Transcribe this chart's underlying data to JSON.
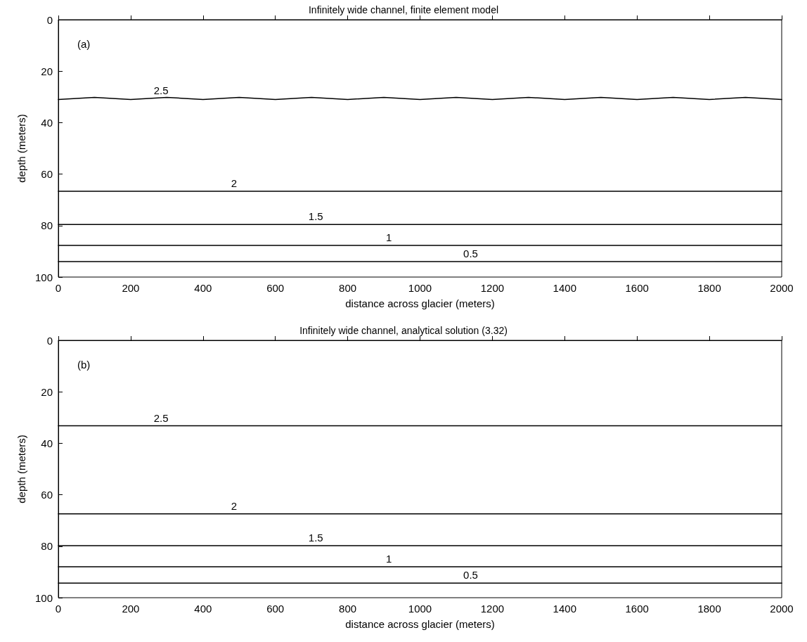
{
  "chart_data": [
    {
      "type": "line",
      "title": "Infinitely wide channel, finite element model",
      "xlabel": "distance across glacier (meters)",
      "ylabel": "depth (meters)",
      "annotations": [
        "(a)"
      ],
      "marker": "none",
      "line_style": "solid",
      "xlim": [
        0,
        2000
      ],
      "xticks": [
        0,
        200,
        400,
        600,
        800,
        1000,
        1200,
        1400,
        1600,
        1800,
        2000
      ],
      "ylim": [
        100,
        0
      ],
      "yticks": [
        0,
        20,
        40,
        60,
        80,
        100
      ],
      "series": [
        {
          "name": "2.5",
          "color": "#000000",
          "x": [
            0,
            100,
            200,
            300,
            400,
            500,
            600,
            700,
            800,
            900,
            1000,
            1100,
            1200,
            1300,
            1400,
            1500,
            1600,
            1700,
            1800,
            1900,
            2000
          ],
          "values": [
            31,
            30.2,
            31,
            30.2,
            31,
            30.2,
            31,
            30.2,
            31,
            30.2,
            31,
            30.2,
            31,
            30.2,
            31,
            30.2,
            31,
            30.2,
            31,
            30.2,
            31
          ]
        },
        {
          "name": "2",
          "color": "#000000",
          "x": [
            0,
            2000
          ],
          "values": [
            66.7,
            66.7
          ]
        },
        {
          "name": "1.5",
          "color": "#000000",
          "x": [
            0,
            2000
          ],
          "values": [
            79.6,
            79.6
          ]
        },
        {
          "name": "1",
          "color": "#000000",
          "x": [
            0,
            2000
          ],
          "values": [
            87.7,
            87.7
          ]
        },
        {
          "name": "0.5",
          "color": "#000000",
          "x": [
            0,
            2000
          ],
          "values": [
            94,
            94
          ]
        }
      ]
    },
    {
      "type": "line",
      "title": "Infinitely wide channel, analytical solution (3.32)",
      "xlabel": "distance across glacier (meters)",
      "ylabel": "depth (meters)",
      "annotations": [
        "(b)"
      ],
      "marker": "none",
      "line_style": "solid",
      "xlim": [
        0,
        2000
      ],
      "xticks": [
        0,
        200,
        400,
        600,
        800,
        1000,
        1200,
        1400,
        1600,
        1800,
        2000
      ],
      "ylim": [
        100,
        0
      ],
      "yticks": [
        0,
        20,
        40,
        60,
        80,
        100
      ],
      "series": [
        {
          "name": "2.5",
          "color": "#000000",
          "x": [
            0,
            2000
          ],
          "values": [
            33.2,
            33.2
          ]
        },
        {
          "name": "2",
          "color": "#000000",
          "x": [
            0,
            2000
          ],
          "values": [
            67.4,
            67.4
          ]
        },
        {
          "name": "1.5",
          "color": "#000000",
          "x": [
            0,
            2000
          ],
          "values": [
            79.8,
            79.8
          ]
        },
        {
          "name": "1",
          "color": "#000000",
          "x": [
            0,
            2000
          ],
          "values": [
            88,
            88
          ]
        },
        {
          "name": "0.5",
          "color": "#000000",
          "x": [
            0,
            2000
          ],
          "values": [
            94.3,
            94.3
          ]
        }
      ]
    }
  ]
}
